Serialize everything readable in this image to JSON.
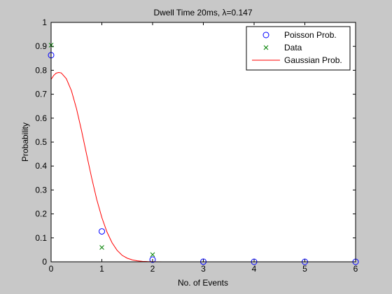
{
  "chart_data": {
    "type": "scatter",
    "title": "Dwell Time 20ms, λ=0.147",
    "xlabel": "No. of Events",
    "ylabel": "Probability",
    "xlim": [
      0,
      6
    ],
    "ylim": [
      0,
      1
    ],
    "x_ticks": [
      "0",
      "1",
      "2",
      "3",
      "4",
      "5",
      "6"
    ],
    "y_ticks": [
      "0",
      "0.1",
      "0.2",
      "0.3",
      "0.4",
      "0.5",
      "0.6",
      "0.7",
      "0.8",
      "0.9",
      "1"
    ],
    "grid": false,
    "legend_position": "top-right",
    "series": [
      {
        "name": "Poisson Prob.",
        "type": "scatter",
        "marker": "circle",
        "color": "#0000ff",
        "x": [
          0,
          1,
          2,
          3,
          4,
          5,
          6
        ],
        "y": [
          0.863,
          0.127,
          0.009,
          0.0005,
          0.0,
          0.0,
          0.0
        ]
      },
      {
        "name": "Data",
        "type": "scatter",
        "marker": "x",
        "color": "#008000",
        "x": [
          0,
          1,
          2
        ],
        "y": [
          0.905,
          0.06,
          0.03
        ]
      },
      {
        "name": "Gaussian Prob.",
        "type": "line",
        "color": "#ff0000",
        "x": [
          0,
          0.05,
          0.1,
          0.15,
          0.2,
          0.3,
          0.4,
          0.5,
          0.6,
          0.7,
          0.8,
          0.9,
          1.0,
          1.1,
          1.2,
          1.3,
          1.4,
          1.5,
          1.6,
          1.7,
          1.8,
          1.9,
          2.0,
          2.2,
          2.5,
          3.0,
          3.5,
          4.0,
          4.5
        ],
        "y": [
          0.762,
          0.778,
          0.788,
          0.791,
          0.789,
          0.765,
          0.715,
          0.64,
          0.548,
          0.448,
          0.35,
          0.26,
          0.185,
          0.125,
          0.08,
          0.048,
          0.027,
          0.015,
          0.008,
          0.004,
          0.002,
          0.001,
          0.0005,
          0.0,
          0.0,
          0.0,
          0.0,
          0.0,
          0.0
        ]
      }
    ]
  }
}
